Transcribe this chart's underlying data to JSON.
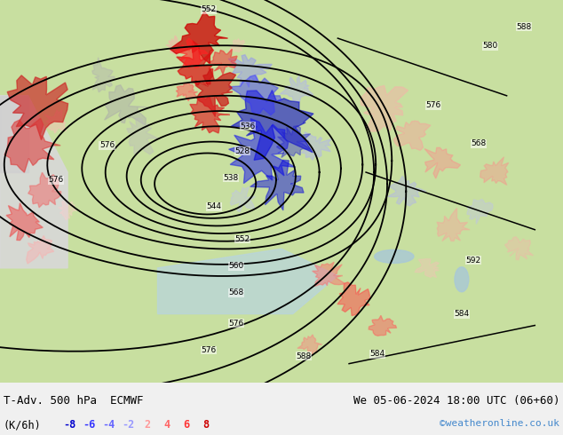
{
  "title_left": "T-Adv. 500 hPa  ECMWF",
  "title_right": "We 05-06-2024 18:00 UTC (06+60)",
  "legend_label": "(K/6h)",
  "legend_values": [
    -8,
    -6,
    -4,
    -2,
    2,
    4,
    6,
    8
  ],
  "legend_colors": [
    "#0000cd",
    "#3333ff",
    "#6666ff",
    "#9999ff",
    "#ff9999",
    "#ff6666",
    "#ff3333",
    "#cd0000"
  ],
  "credit": "©weatheronline.co.uk",
  "map_bg": "#c8dfa0",
  "fig_width": 6.34,
  "fig_height": 4.9,
  "dpi": 100
}
